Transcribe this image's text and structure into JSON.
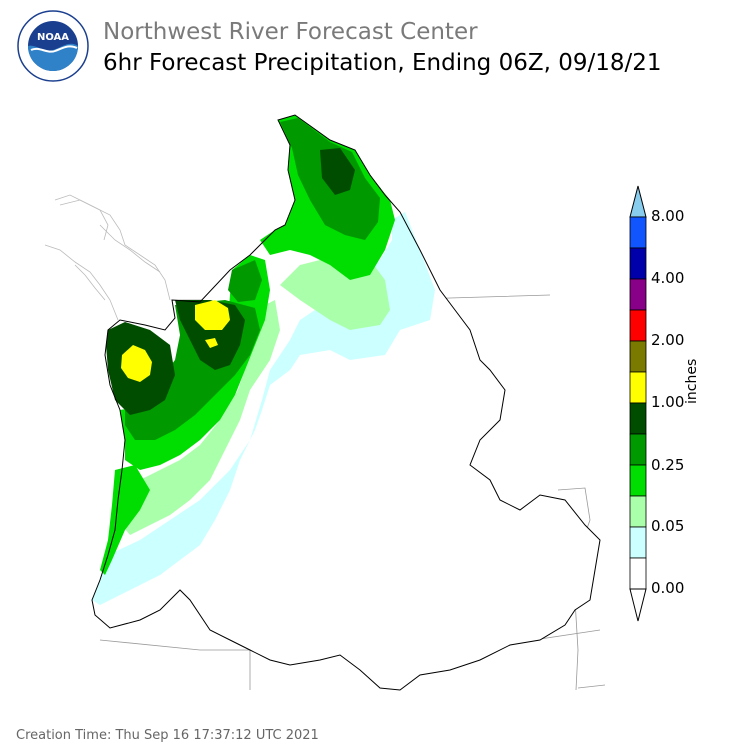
{
  "header": {
    "agency": "Northwest River Forecast Center",
    "product": "6hr Forecast Precipitation, Ending 06Z, 09/18/21"
  },
  "logo": {
    "icon": "noaa-logo-icon",
    "text": "NOAA",
    "ring_text": "NATIONAL OCEANIC AND ATMOSPHERIC ADMINISTRATION",
    "ring_text_bottom": "U.S. DEPARTMENT OF COMMERCE",
    "colors": {
      "dark_blue": "#1b3f8f",
      "light_blue": "#2f82c8",
      "white": "#ffffff"
    }
  },
  "legend": {
    "units": "inches",
    "labels": [
      "8.00",
      "4.00",
      "2.00",
      "1.00",
      "0.25",
      "0.05",
      "0.00"
    ],
    "colors_top_to_bottom": [
      "#88ccee",
      "#1155ff",
      "#0000aa",
      "#880088",
      "#ff0000",
      "#7a7a00",
      "#ffff00",
      "#004d00",
      "#009900",
      "#00dd00",
      "#aaffaa",
      "#ccffff",
      "#ffffff"
    ]
  },
  "map": {
    "region": "Pacific Northwest basins",
    "colors": {
      "trace": "#ccffff",
      "light": "#aaffaa",
      "medium": "#00dd00",
      "heavy": "#009900",
      "very_heavy": "#004d00",
      "yellow": "#ffff00",
      "border": "#000000",
      "state_line": "#999999"
    }
  },
  "footer": {
    "creation_time": "Creation Time: Thu Sep 16 17:37:12 UTC 2021"
  }
}
